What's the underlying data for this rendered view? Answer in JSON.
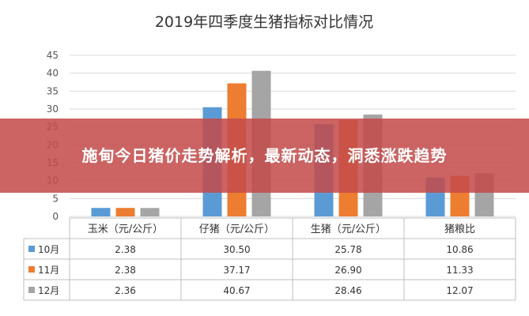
{
  "overlay": {
    "headline": "施甸今日猪价走势解析，最新动态，洞悉涨跌趋势"
  },
  "chart_data": {
    "type": "bar",
    "title": "2019年四季度生猪指标对比情况",
    "categories": [
      "玉米（元/公斤）",
      "仔猪（元/公斤）",
      "生猪（元/公斤）",
      "猪粮比"
    ],
    "series": [
      {
        "name": "10月",
        "color": "#5b9bd5",
        "values": [
          2.38,
          30.5,
          25.78,
          10.86
        ],
        "labels": [
          "2.38",
          "30.50",
          "25.78",
          "10.86"
        ]
      },
      {
        "name": "11月",
        "color": "#ed7d31",
        "values": [
          2.38,
          37.17,
          26.9,
          11.33
        ],
        "labels": [
          "2.38",
          "37.17",
          "26.90",
          "11.33"
        ]
      },
      {
        "name": "12月",
        "color": "#a5a5a5",
        "values": [
          2.36,
          40.67,
          28.46,
          12.07
        ],
        "labels": [
          "2.36",
          "40.67",
          "28.46",
          "12.07"
        ]
      }
    ],
    "yticks": [
      "0",
      "5",
      "10",
      "15",
      "20",
      "25",
      "30",
      "35",
      "40",
      "45"
    ],
    "ylim": [
      0,
      45
    ],
    "grid": true,
    "legend": "data-table"
  }
}
